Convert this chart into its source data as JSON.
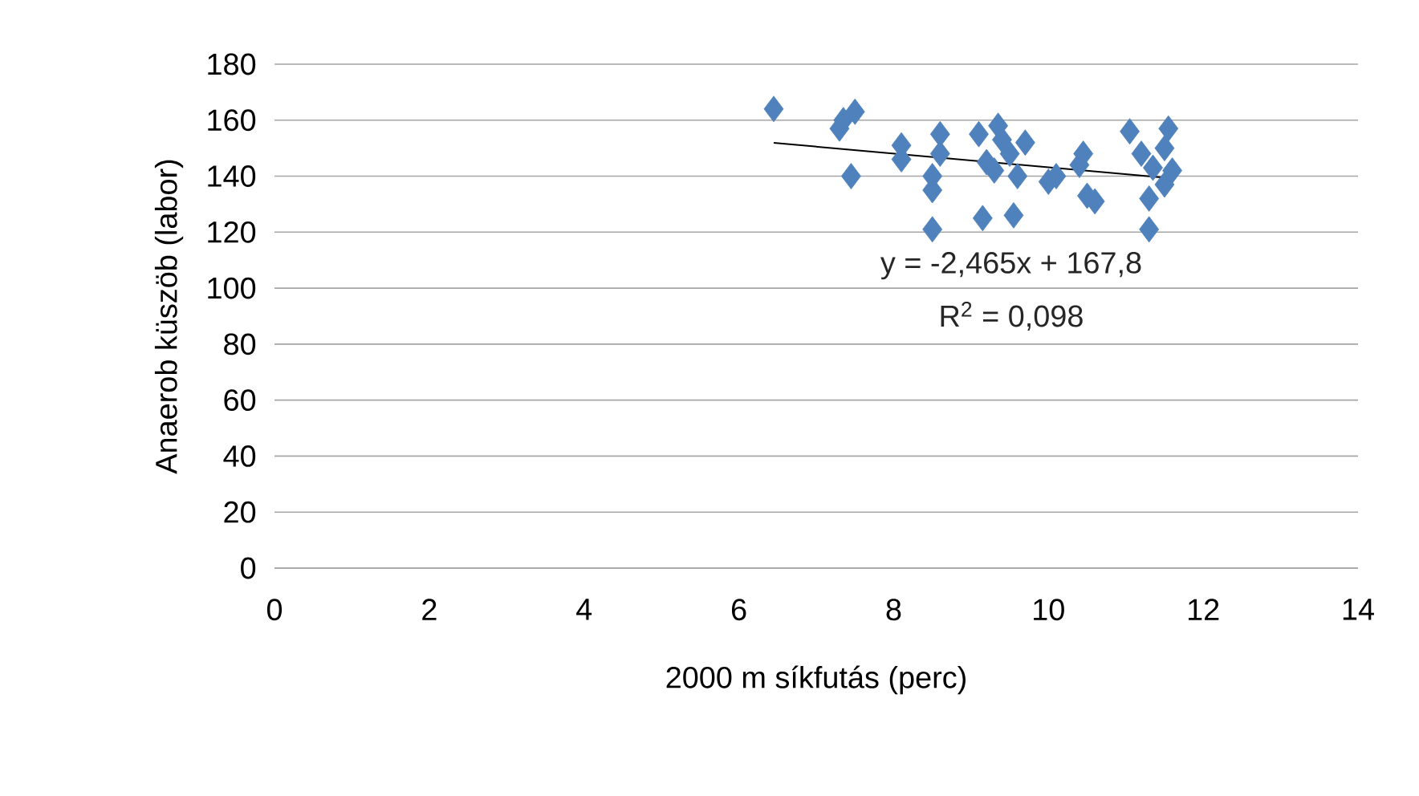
{
  "chart_data": {
    "type": "scatter",
    "xlabel": "2000 m síkfutás (perc)",
    "ylabel": "Anaerob küszöb (labor)",
    "xlim": [
      0,
      14
    ],
    "xticks": [
      0,
      2,
      4,
      6,
      8,
      10,
      12,
      14
    ],
    "ylim": [
      0,
      180
    ],
    "yticks": [
      0,
      20,
      40,
      60,
      80,
      100,
      120,
      140,
      160,
      180
    ],
    "grid": "y",
    "marker": "diamond",
    "series": [
      {
        "color": "#4f81bd",
        "x": [
          6.45,
          7.3,
          7.35,
          7.5,
          7.45,
          8.1,
          8.1,
          8.5,
          8.5,
          8.5,
          8.6,
          8.6,
          9.1,
          9.15,
          9.2,
          9.35,
          9.4,
          9.5,
          9.55,
          9.6,
          9.7,
          10.0,
          10.1,
          10.4,
          10.5,
          10.6,
          11.05,
          11.2,
          11.3,
          11.3,
          11.35,
          11.5,
          11.5,
          11.55,
          11.6,
          10.45,
          9.3
        ],
        "values": [
          164,
          157,
          160,
          163,
          140,
          146,
          151,
          121,
          135,
          140,
          155,
          148,
          155,
          125,
          145,
          158,
          153,
          148,
          126,
          140,
          152,
          138,
          140,
          144,
          133,
          131,
          156,
          148,
          132,
          121,
          143,
          137,
          150,
          157,
          142,
          148,
          142
        ]
      },
      {
        "type": "line",
        "color": "#000000",
        "marker": "none",
        "x": [
          6.45,
          11.6
        ],
        "values": [
          151.9,
          139.2
        ]
      }
    ],
    "annotations": [
      "y = -2,465x + 167,8",
      "R$^{2}$ = 0,098"
    ]
  }
}
